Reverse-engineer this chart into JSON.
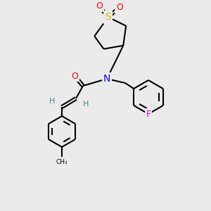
{
  "background_color": "#ebebeb",
  "bond_color": "#000000",
  "atom_colors": {
    "O": "#ff0000",
    "S": "#c8c800",
    "N": "#0000ff",
    "F": "#dd00dd",
    "H": "#408080",
    "C": "#000000"
  },
  "figsize": [
    3.0,
    3.0
  ],
  "dpi": 100
}
